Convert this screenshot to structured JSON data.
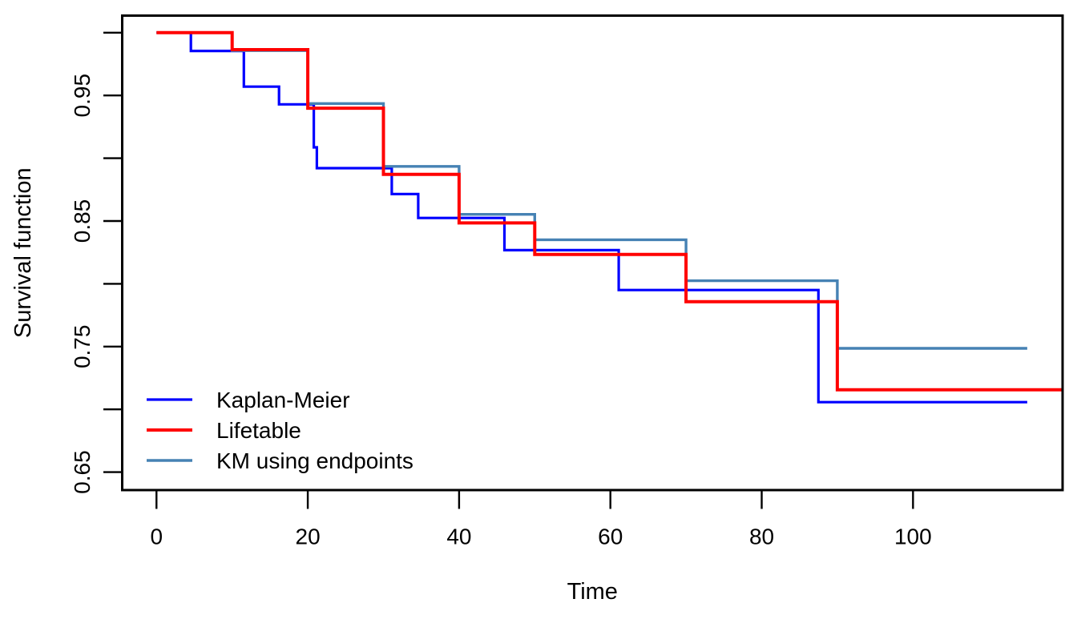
{
  "chart_data": {
    "type": "line",
    "subtype": "step-survival-curves",
    "title": "",
    "xlabel": "Time",
    "ylabel": "Survival function",
    "grid": false,
    "legend_position": "bottom-left",
    "xlim": [
      -4.53,
      119.77
    ],
    "ylim": [
      0.6357,
      1.0136
    ],
    "x_ticks": [
      {
        "v": 0,
        "label": "0"
      },
      {
        "v": 20,
        "label": "20"
      },
      {
        "v": 40,
        "label": "40"
      },
      {
        "v": 60,
        "label": "60"
      },
      {
        "v": 80,
        "label": "80"
      },
      {
        "v": 100,
        "label": "100"
      }
    ],
    "y_ticks": [
      {
        "v": 1.0,
        "label": ""
      },
      {
        "v": 0.95,
        "label": "0.95"
      },
      {
        "v": 0.9,
        "label": ""
      },
      {
        "v": 0.85,
        "label": "0.85"
      },
      {
        "v": 0.8,
        "label": ""
      },
      {
        "v": 0.75,
        "label": "0.75"
      },
      {
        "v": 0.7,
        "label": ""
      },
      {
        "v": 0.65,
        "label": "0.65"
      }
    ],
    "series": [
      {
        "name": "Kaplan-Meier",
        "color": "#0000FF",
        "lw": 3.2,
        "z": 1,
        "end_t": 115.1,
        "points": [
          [
            0,
            1.0
          ],
          [
            4.55,
            0.9855
          ],
          [
            11.55,
            0.957
          ],
          [
            16.2,
            0.9429
          ],
          [
            20.8,
            0.9087
          ],
          [
            21.2,
            0.8921
          ],
          [
            31.1,
            0.8715
          ],
          [
            34.6,
            0.8524
          ],
          [
            46.0,
            0.8268
          ],
          [
            61.1,
            0.795
          ],
          [
            87.5,
            0.7057
          ]
        ]
      },
      {
        "name": "Lifetable",
        "color": "#FF0000",
        "lw": 4,
        "z": 3,
        "end_t": 119.8,
        "points": [
          [
            0,
            1.0
          ],
          [
            10,
            0.9865
          ],
          [
            20,
            0.9399
          ],
          [
            30,
            0.8872
          ],
          [
            40,
            0.8485
          ],
          [
            50,
            0.8234
          ],
          [
            70,
            0.7857
          ],
          [
            90,
            0.7156
          ]
        ]
      },
      {
        "name": "KM using endpoints",
        "color": "#4682B4",
        "lw": 3.4,
        "z": 2,
        "end_t": 115.1,
        "points": [
          [
            0,
            1.0
          ],
          [
            10,
            0.9857
          ],
          [
            20,
            0.9436
          ],
          [
            30,
            0.8935
          ],
          [
            40,
            0.8553
          ],
          [
            50,
            0.8351
          ],
          [
            70,
            0.8024
          ],
          [
            90,
            0.7486
          ]
        ]
      }
    ]
  }
}
